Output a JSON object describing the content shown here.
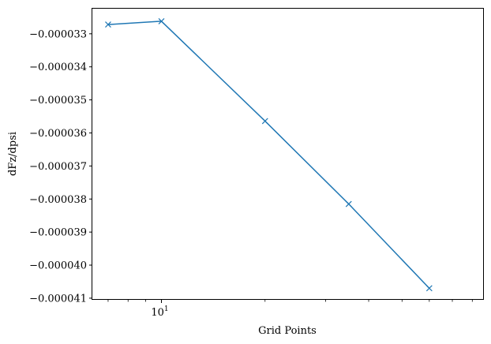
{
  "chart_data": {
    "type": "line",
    "title": "",
    "xlabel": "Grid Points",
    "ylabel": "dFz/dpsi",
    "x_scale": "log",
    "x_ticks": [
      {
        "value": 10,
        "label_base": "10",
        "label_exp": "1"
      }
    ],
    "y_ticks": [
      {
        "value": -3.3e-05,
        "label": "−0.000033"
      },
      {
        "value": -3.4e-05,
        "label": "−0.000034"
      },
      {
        "value": -3.5e-05,
        "label": "−0.000035"
      },
      {
        "value": -3.6e-05,
        "label": "−0.000036"
      },
      {
        "value": -3.7e-05,
        "label": "−0.000037"
      },
      {
        "value": -3.8e-05,
        "label": "−0.000038"
      },
      {
        "value": -3.9e-05,
        "label": "−0.000039"
      },
      {
        "value": -4e-05,
        "label": "−0.000040"
      },
      {
        "value": -4.1e-05,
        "label": "−0.000041"
      }
    ],
    "xlim": [
      6.3,
      86
    ],
    "ylim": [
      -4.105e-05,
      -3.224e-05
    ],
    "grid": false,
    "legend": "none",
    "series": [
      {
        "color": "#1f77b4",
        "marker": "x",
        "x": [
          7,
          10,
          20,
          35,
          60
        ],
        "y": [
          -3.272e-05,
          -3.262e-05,
          -3.564e-05,
          -3.815e-05,
          -4.07e-05
        ]
      }
    ]
  }
}
